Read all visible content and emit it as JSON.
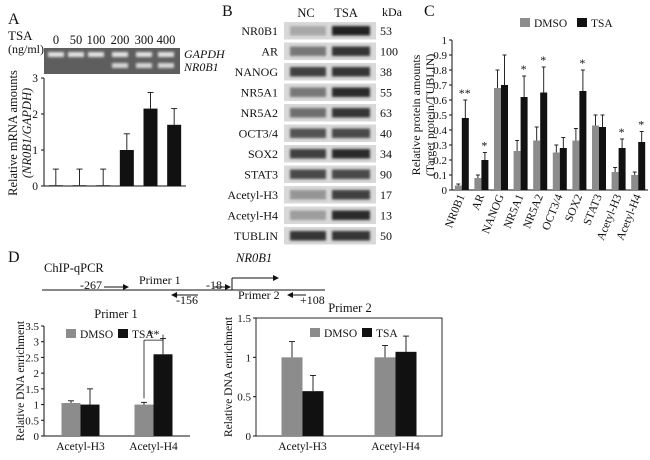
{
  "panels": {
    "A": {
      "letter": "A",
      "tsa_label": "TSA",
      "tsa_unit": "(ng/ml)",
      "doses": [
        "0",
        "50",
        "100",
        "200",
        "300",
        "400"
      ],
      "gel_labels": [
        "GAPDH",
        "NR0B1"
      ],
      "ylabel_1": "Relative mRNA amounts",
      "ylabel_2": "(NR0B1/GAPDH)"
    },
    "B": {
      "letter": "B",
      "col_headers": [
        "NC",
        "TSA"
      ],
      "kda_label": "kDa",
      "rows": [
        {
          "label": "NR0B1",
          "kda": "53"
        },
        {
          "label": "AR",
          "kda": "100"
        },
        {
          "label": "NANOG",
          "kda": "38"
        },
        {
          "label": "NR5A1",
          "kda": "55"
        },
        {
          "label": "NR5A2",
          "kda": "63"
        },
        {
          "label": "OCT3/4",
          "kda": "40"
        },
        {
          "label": "SOX2",
          "kda": "34"
        },
        {
          "label": "STAT3",
          "kda": "90"
        },
        {
          "label": "Acetyl-H3",
          "kda": "17"
        },
        {
          "label": "Acetyl-H4",
          "kda": "13"
        },
        {
          "label": "TUBLIN",
          "kda": "50"
        }
      ],
      "band_intensity": [
        [
          0.25,
          0.95
        ],
        [
          0.5,
          0.85
        ],
        [
          0.8,
          0.85
        ],
        [
          0.5,
          0.9
        ],
        [
          0.55,
          0.85
        ],
        [
          0.7,
          0.75
        ],
        [
          0.8,
          0.9
        ],
        [
          0.75,
          0.75
        ],
        [
          0.35,
          0.8
        ],
        [
          0.3,
          0.9
        ],
        [
          0.85,
          0.85
        ]
      ]
    },
    "C": {
      "letter": "C"
    },
    "D": {
      "letter": "D",
      "chip_title": "ChIP-qPCR",
      "gene": "NR0B1",
      "primer1_label": "Primer 1",
      "primer2_label": "Primer 2",
      "pos_labels": [
        "-267",
        "-156",
        "-18",
        "+108"
      ]
    }
  },
  "chart_data": [
    {
      "id": "A",
      "type": "bar",
      "categories": [
        "0",
        "50",
        "100",
        "200",
        "300",
        "400"
      ],
      "values": [
        0.02,
        0.02,
        0.02,
        1.0,
        2.15,
        1.7
      ],
      "errors": [
        0.45,
        0.45,
        0.45,
        0.45,
        0.45,
        0.45
      ],
      "title": "",
      "xlabel": "TSA (ng/ml)",
      "ylabel": "Relative mRNA amounts (NR0B1/GAPDH)",
      "ylim": [
        0,
        3
      ],
      "yticks": [
        "0",
        "1",
        "2",
        "3"
      ],
      "color": "#111111"
    },
    {
      "id": "C",
      "type": "bar",
      "categories": [
        "NR0B1",
        "AR",
        "NANOG",
        "NR5A1",
        "NR5A2",
        "OCT3/4",
        "SOX2",
        "STAT3",
        "Acetyl-H3",
        "Acetyl-H4"
      ],
      "series": [
        {
          "name": "DMSO",
          "values": [
            0.03,
            0.08,
            0.68,
            0.26,
            0.33,
            0.25,
            0.33,
            0.43,
            0.12,
            0.1
          ],
          "errors": [
            0.01,
            0.02,
            0.12,
            0.07,
            0.09,
            0.05,
            0.08,
            0.07,
            0.03,
            0.02
          ],
          "color": "#8c8c8c"
        },
        {
          "name": "TSA",
          "values": [
            0.48,
            0.2,
            0.7,
            0.62,
            0.65,
            0.28,
            0.66,
            0.42,
            0.28,
            0.32
          ],
          "errors": [
            0.12,
            0.05,
            0.2,
            0.14,
            0.17,
            0.07,
            0.14,
            0.08,
            0.06,
            0.07
          ],
          "color": "#111111"
        }
      ],
      "significance": [
        "**",
        "*",
        "",
        "*",
        "*",
        "",
        "*",
        "",
        "*",
        "*"
      ],
      "title": "",
      "ylabel": "Relative protein amounts (Target protein/TUBLIN)",
      "ylim": [
        0,
        1
      ],
      "yticks": [
        "0",
        "0.1",
        "0.2",
        "0.3",
        "0.4",
        "0.5",
        "0.6",
        "0.7",
        "0.8",
        "0.9",
        "1"
      ],
      "legend": "top"
    },
    {
      "id": "D1",
      "type": "bar",
      "title": "Primer  1",
      "categories": [
        "Acetyl-H3",
        "Acetyl-H4"
      ],
      "series": [
        {
          "name": "DMSO",
          "values": [
            1.05,
            1.0
          ],
          "errors": [
            0.07,
            0.07
          ],
          "color": "#8c8c8c"
        },
        {
          "name": "TSA",
          "values": [
            1.0,
            2.6
          ],
          "errors": [
            0.5,
            0.5
          ],
          "color": "#111111"
        }
      ],
      "significance_label": "**",
      "ylabel": "Relative DNA enrichment",
      "ylim": [
        0,
        3.5
      ],
      "yticks": [
        "0",
        "0.5",
        "1",
        "1.5",
        "2",
        "2.5",
        "3",
        "3.5"
      ],
      "legend": "top-left"
    },
    {
      "id": "D2",
      "type": "bar",
      "title": "Primer 2",
      "categories": [
        "Acetyl-H3",
        "Acetyl-H4"
      ],
      "series": [
        {
          "name": "DMSO",
          "values": [
            1.0,
            1.0
          ],
          "errors": [
            0.2,
            0.15
          ],
          "color": "#8c8c8c"
        },
        {
          "name": "TSA",
          "values": [
            0.57,
            1.07
          ],
          "errors": [
            0.2,
            0.2
          ],
          "color": "#111111"
        }
      ],
      "ylabel": "Relative DNA enrichment",
      "ylim": [
        0,
        1.5
      ],
      "yticks": [
        "0",
        "0.5",
        "1",
        "1.5"
      ],
      "legend": "top"
    }
  ]
}
